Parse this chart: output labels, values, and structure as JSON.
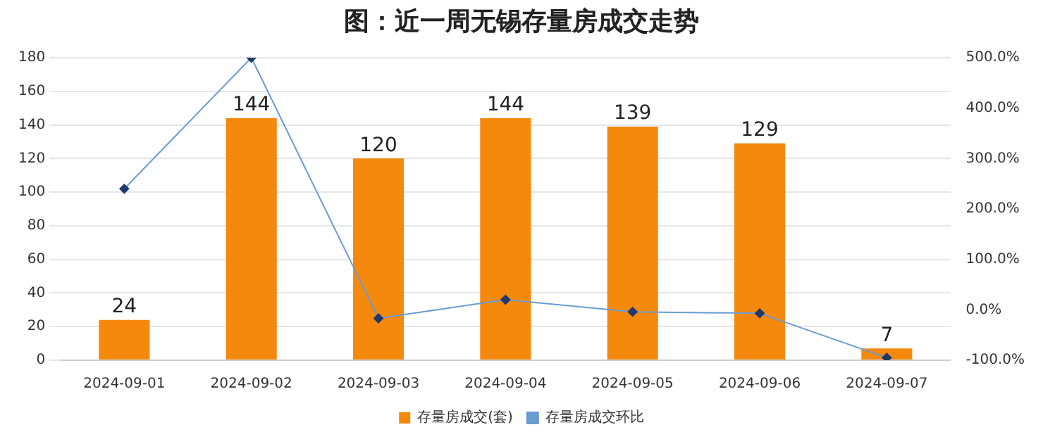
{
  "chart_data": {
    "type": "bar",
    "title": "图：近一周无锡存量房成交走势",
    "categories": [
      "2024-09-01",
      "2024-09-02",
      "2024-09-03",
      "2024-09-04",
      "2024-09-05",
      "2024-09-06",
      "2024-09-07"
    ],
    "series": [
      {
        "name": "存量房成交(套)",
        "color": "#f5890e",
        "values": [
          24,
          144,
          120,
          144,
          139,
          129,
          7
        ],
        "value_labels": [
          "24",
          "144",
          "120",
          "144",
          "139",
          "129",
          "7"
        ]
      },
      {
        "name": "存量房成交环比",
        "type": "line",
        "axis": "y2",
        "color": "#6a9bd1",
        "marker": "diamond",
        "values": [
          240,
          500,
          -17,
          20,
          -4,
          -7,
          -95
        ]
      }
    ],
    "ylim": [
      0,
      180
    ],
    "yticks": [
      0,
      20,
      40,
      60,
      80,
      100,
      120,
      140,
      160,
      180
    ],
    "y2lim": [
      -100,
      500
    ],
    "y2ticks": [
      {
        "value": -100,
        "label": "-100.0%"
      },
      {
        "value": 0,
        "label": "0.0%"
      },
      {
        "value": 100,
        "label": "100.0%"
      },
      {
        "value": 200,
        "label": "200.0%"
      },
      {
        "value": 300,
        "label": "300.0%"
      },
      {
        "value": 400,
        "label": "400.0%"
      },
      {
        "value": 500,
        "label": "500.0%"
      }
    ],
    "grid": "y",
    "legend": "bottom"
  }
}
